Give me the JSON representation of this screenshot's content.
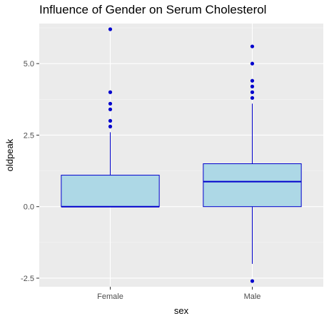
{
  "chart_data": {
    "type": "box",
    "title": "Influence of Gender on Serum Cholesterol",
    "xlabel": "sex",
    "ylabel": "oldpeak",
    "categories": [
      "Female",
      "Male"
    ],
    "y_ticks": [
      -2.5,
      0.0,
      2.5,
      5.0
    ],
    "y_tick_labels": [
      "-2.5",
      "0.0",
      "2.5",
      "5.0"
    ],
    "ylim": [
      -2.8,
      6.4
    ],
    "grid": true,
    "legend": "none",
    "boxes": [
      {
        "category": "Female",
        "whisker_low": 0.0,
        "q1": 0.0,
        "median": 0.0,
        "q3": 1.1,
        "whisker_high": 2.6,
        "outliers": [
          2.8,
          3.0,
          3.4,
          3.6,
          4.0,
          6.2
        ]
      },
      {
        "category": "Male",
        "whisker_low": -2.0,
        "q1": 0.0,
        "median": 0.875,
        "q3": 1.5,
        "whisker_high": 3.6,
        "outliers": [
          -2.6,
          3.8,
          4.0,
          4.2,
          4.4,
          5.0,
          5.6
        ]
      }
    ],
    "colors": {
      "panel": "#ebebeb",
      "grid_major": "#ffffff",
      "grid_minor": "#f5f5f5",
      "box_fill": "#add8e6",
      "box_stroke": "#0000cd",
      "outlier": "#0000cd",
      "tick_text": "#4d4d4d",
      "axis_title": "#000000"
    }
  }
}
